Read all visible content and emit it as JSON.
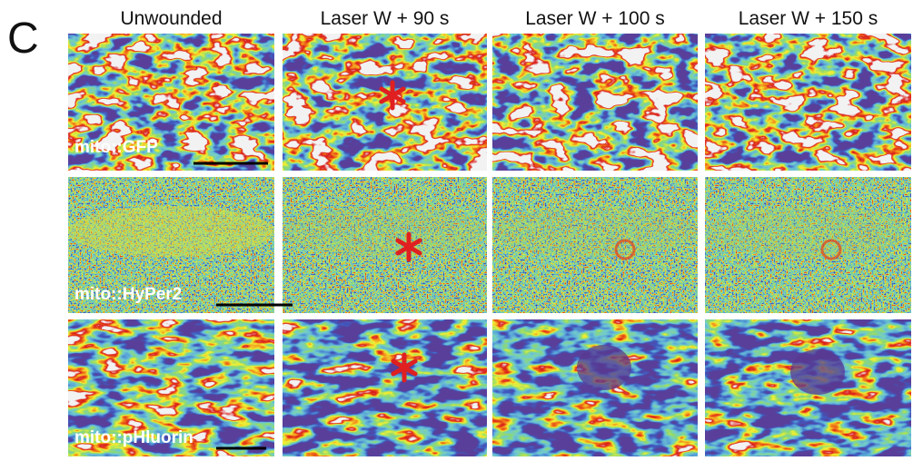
{
  "panel_label": "C",
  "columns": [
    "Unwounded",
    "Laser W + 90 s",
    "Laser W + 100 s",
    "Laser W + 150 s"
  ],
  "rows": [
    {
      "label": "mito::GFP"
    },
    {
      "label": "mito::HyPer2"
    },
    {
      "label": "mito::pHluorin"
    }
  ]
}
